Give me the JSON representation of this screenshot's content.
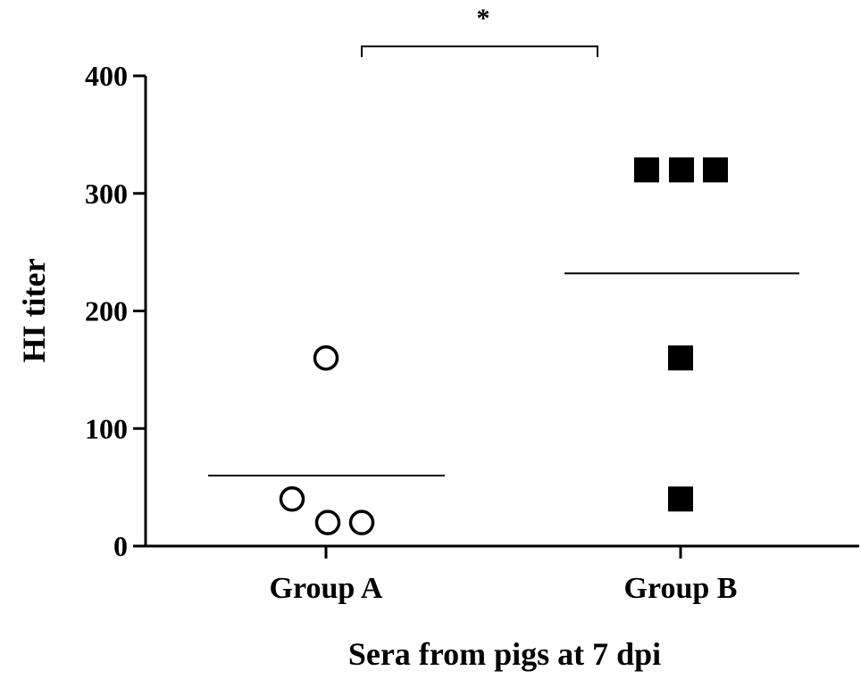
{
  "chart_data": {
    "type": "scatter",
    "title": "",
    "xlabel": "Sera from pigs at 7 dpi",
    "ylabel": "HI titer",
    "ylim": [
      0,
      400
    ],
    "yticks": [
      0,
      100,
      200,
      300,
      400
    ],
    "ytick_labels": [
      "0",
      "100",
      "200",
      "300",
      "400"
    ],
    "categories": [
      "Group A",
      "Group B"
    ],
    "grid": false,
    "legend": "none",
    "series": [
      {
        "category": "Group A",
        "marker": "open-circle",
        "color": "#000000",
        "points": [
          160,
          40,
          20,
          20
        ],
        "mean": 60
      },
      {
        "category": "Group B",
        "marker": "filled-square",
        "color": "#000000",
        "points": [
          320,
          320,
          320,
          160,
          40
        ],
        "mean": 232
      }
    ],
    "annotations": [
      {
        "type": "significance-bracket",
        "between": [
          "Group A",
          "Group B"
        ],
        "label": "*"
      }
    ]
  }
}
